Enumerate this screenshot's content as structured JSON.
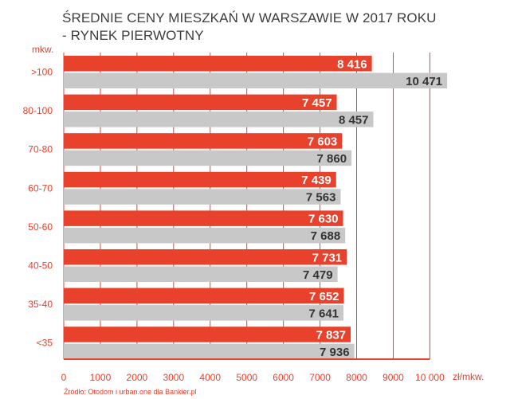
{
  "title_line1": "ŚREDNIE CENY MIESZKAŃ W WARSZAWIE W 2017 ROKU",
  "title_line2": "- RYNEK PIERWOTNY",
  "y_unit": "mkw.",
  "x_unit": "zł/mkw.",
  "source": "Źródło: Otodom i urban.one dla Bankier.pl",
  "colors": {
    "series1": "#e8412c",
    "series2": "#c8c8c8",
    "grid": "#e8412c",
    "text_dark": "#333333",
    "text_light": "#ffffff"
  },
  "chart_data": {
    "type": "bar",
    "orientation": "horizontal",
    "title": "ŚREDNIE CENY MIESZKAŃ W WARSZAWIE W 2017 ROKU - RYNEK PIERWOTNY",
    "xlabel": "zł/mkw.",
    "ylabel": "mkw.",
    "xlim": [
      0,
      10000
    ],
    "x_ticks": [
      "0",
      "1000",
      "2000",
      "3000",
      "4000",
      "5000",
      "6000",
      "7000",
      "8000",
      "9000",
      "10 000"
    ],
    "grid": true,
    "categories": [
      ">100",
      "80-100",
      "70-80",
      "60-70",
      "50-60",
      "40-50",
      "35-40",
      "<35"
    ],
    "series": [
      {
        "name": "red",
        "values": [
          8416,
          7457,
          7603,
          7439,
          7630,
          7731,
          7652,
          7837
        ],
        "labels": [
          "8 416",
          "7 457",
          "7 603",
          "7 439",
          "7 630",
          "7 731",
          "7 652",
          "7 837"
        ]
      },
      {
        "name": "gray",
        "values": [
          10471,
          8457,
          7860,
          7563,
          7688,
          7479,
          7641,
          7936
        ],
        "labels": [
          "10 471",
          "8 457",
          "7 860",
          "7 563",
          "7 688",
          "7 479",
          "7 641",
          "7 936"
        ]
      }
    ]
  }
}
